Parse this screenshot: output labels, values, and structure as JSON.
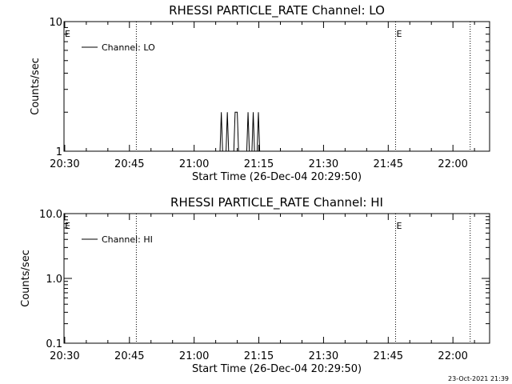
{
  "footer": {
    "timestamp": "23-Oct-2021 21:39"
  },
  "chart_data": [
    {
      "type": "line",
      "title": "RHESSI PARTICLE_RATE Channel: LO",
      "xlabel": "Start Time (26-Dec-04 20:29:50)",
      "ylabel": "Counts/sec",
      "yscale": "log",
      "ylim": [
        1,
        10
      ],
      "y_ticks": [
        {
          "v": 1,
          "label": "1"
        },
        {
          "v": 10,
          "label": "10"
        }
      ],
      "x_ticks": [
        "20:30",
        "20:45",
        "21:00",
        "21:15",
        "21:30",
        "21:45",
        "22:00"
      ],
      "x_tick_minutes": [
        0,
        15,
        30,
        45,
        60,
        75,
        90
      ],
      "x_range_minutes": [
        -0.17,
        98.5
      ],
      "eclipse_lines_minutes": [
        16.6,
        76.7,
        94.0
      ],
      "eclipse_label": "E",
      "legend": {
        "position": "top-left",
        "label": "Channel: LO"
      },
      "series": [
        {
          "name": "Channel: LO",
          "points": [
            [
              0,
              1
            ],
            [
              36.0,
              1
            ],
            [
              36.3,
              2
            ],
            [
              36.6,
              1
            ],
            [
              37.4,
              1
            ],
            [
              37.7,
              2
            ],
            [
              38.0,
              1
            ],
            [
              39.2,
              1
            ],
            [
              39.5,
              2
            ],
            [
              40.0,
              2
            ],
            [
              40.3,
              1
            ],
            [
              42.2,
              1
            ],
            [
              42.5,
              2
            ],
            [
              42.8,
              1
            ],
            [
              43.4,
              1
            ],
            [
              43.7,
              2
            ],
            [
              44.0,
              1
            ],
            [
              44.6,
              1
            ],
            [
              44.9,
              2
            ],
            [
              45.2,
              1
            ],
            [
              98.5,
              1
            ]
          ]
        }
      ]
    },
    {
      "type": "line",
      "title": "RHESSI PARTICLE_RATE Channel: HI",
      "xlabel": "Start Time (26-Dec-04 20:29:50)",
      "ylabel": "Counts/sec",
      "yscale": "log",
      "ylim": [
        0.1,
        10
      ],
      "y_ticks": [
        {
          "v": 0.1,
          "label": "0.1"
        },
        {
          "v": 1,
          "label": "1.0"
        },
        {
          "v": 10,
          "label": "10.0"
        }
      ],
      "x_ticks": [
        "20:30",
        "20:45",
        "21:00",
        "21:15",
        "21:30",
        "21:45",
        "22:00"
      ],
      "x_tick_minutes": [
        0,
        15,
        30,
        45,
        60,
        75,
        90
      ],
      "x_range_minutes": [
        -0.17,
        98.5
      ],
      "eclipse_lines_minutes": [
        16.6,
        76.7,
        94.0
      ],
      "eclipse_label": "E",
      "legend": {
        "position": "top-left",
        "label": "Channel: HI"
      },
      "series": [
        {
          "name": "Channel: HI",
          "points": []
        }
      ]
    }
  ]
}
